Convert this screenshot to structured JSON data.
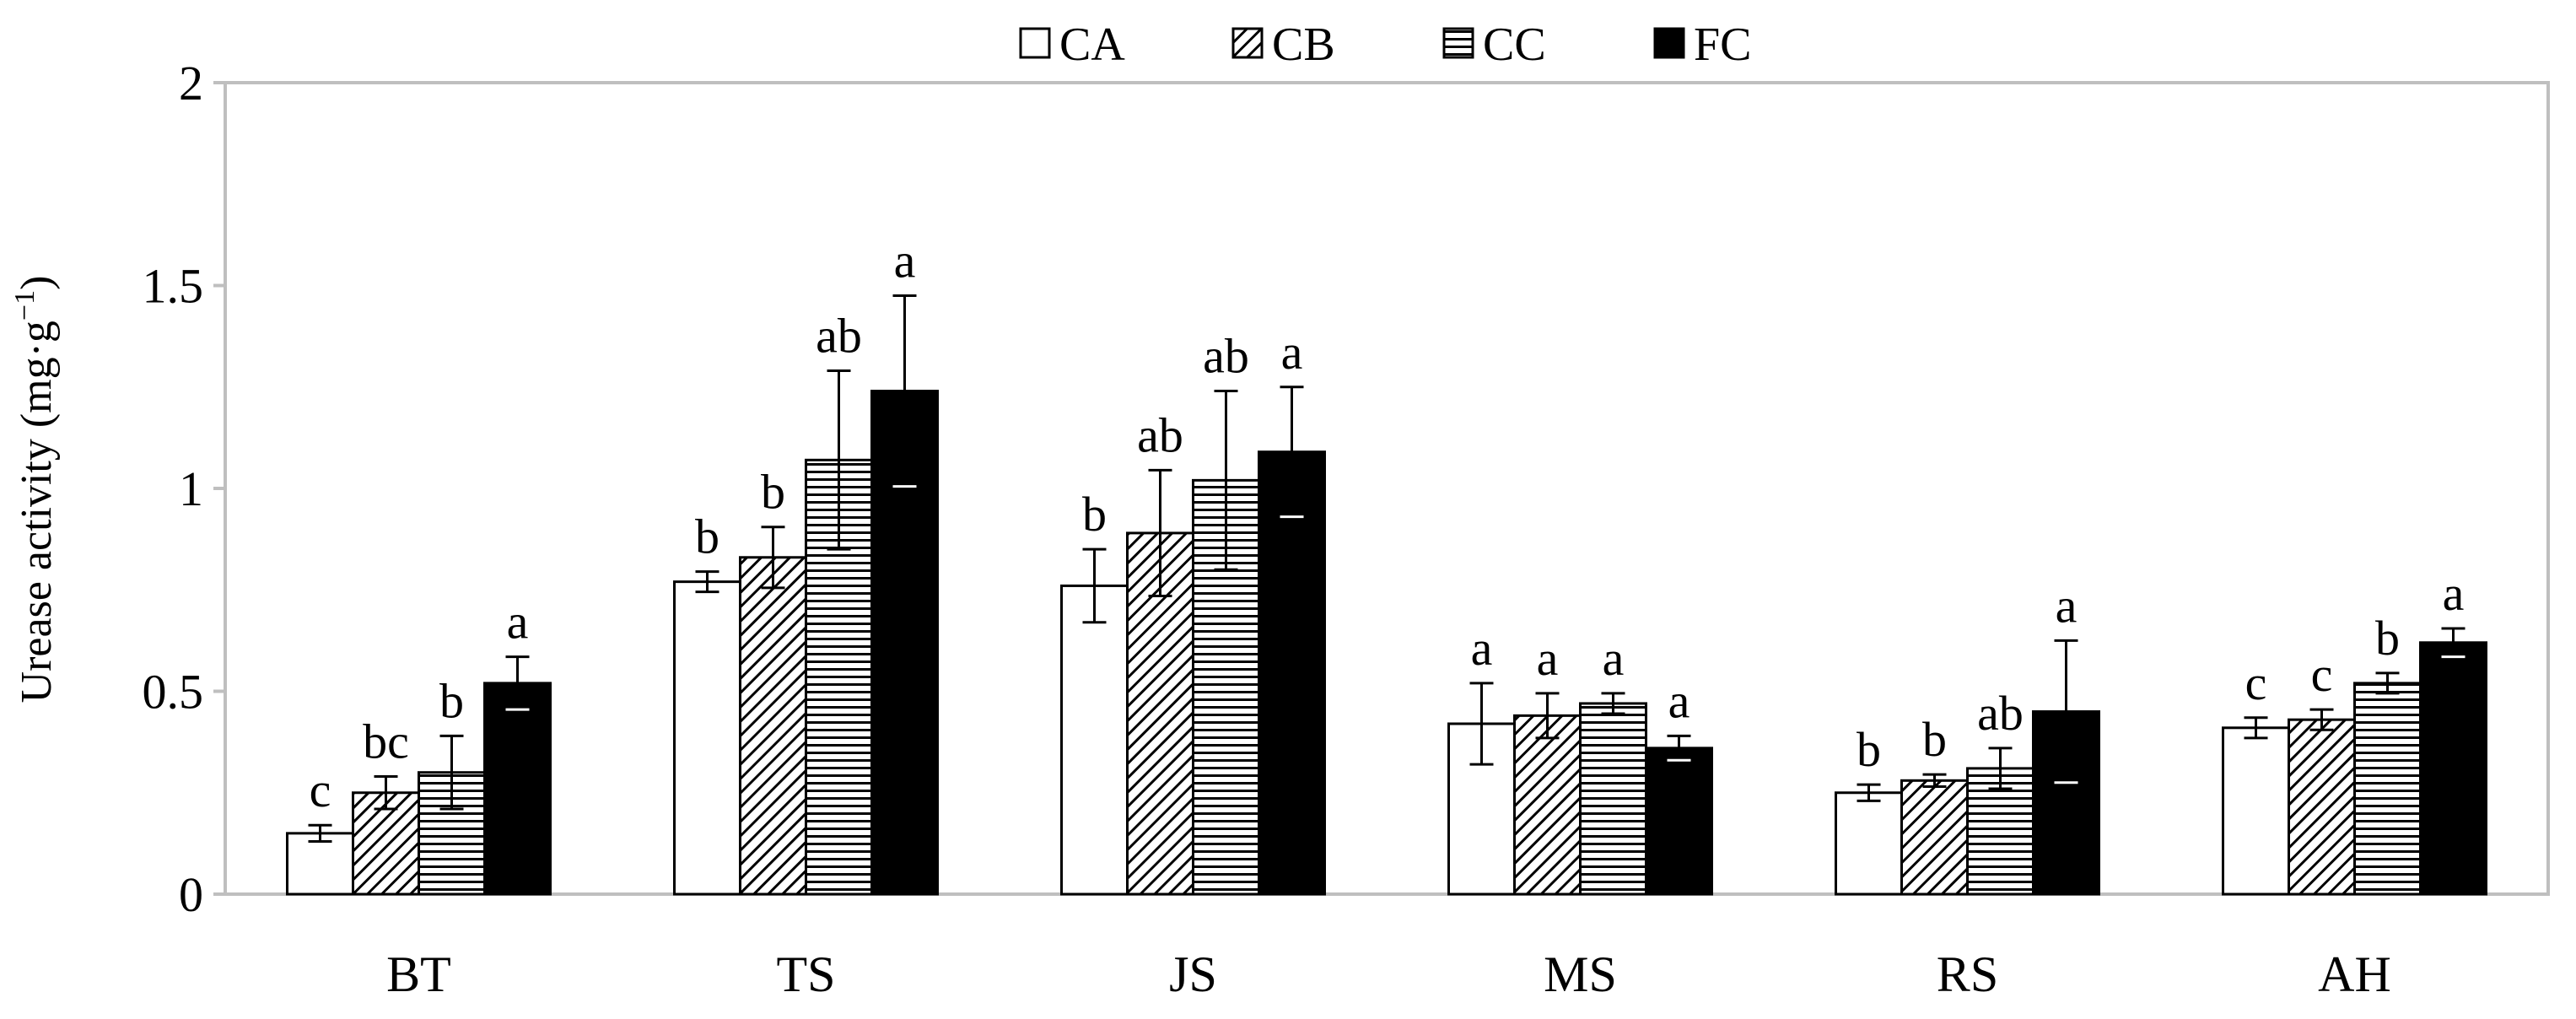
{
  "chart_data": {
    "type": "bar",
    "title": "",
    "ylabel": "Urease activity (mg·g",
    "ylabel_sup": "−1",
    "ylabel_close": ")",
    "xlabel": "",
    "categories": [
      "BT",
      "TS",
      "JS",
      "MS",
      "RS",
      "AH"
    ],
    "ylim": [
      0,
      2
    ],
    "yticks": [
      0,
      0.5,
      1,
      1.5,
      2
    ],
    "ytick_labels": [
      "0",
      "0.5",
      "1",
      "1.5",
      "2"
    ],
    "legend_position": "top-center",
    "series": [
      {
        "name": "CA",
        "pattern": "empty",
        "values": [
          0.15,
          0.77,
          0.76,
          0.42,
          0.25,
          0.41
        ],
        "errors": [
          0.02,
          0.025,
          0.09,
          0.1,
          0.02,
          0.025
        ],
        "letters": [
          "c",
          "b",
          "b",
          "a",
          "b",
          "c"
        ]
      },
      {
        "name": "CB",
        "pattern": "diagonal",
        "values": [
          0.25,
          0.83,
          0.89,
          0.44,
          0.28,
          0.43
        ],
        "errors": [
          0.04,
          0.075,
          0.155,
          0.055,
          0.015,
          0.025
        ],
        "letters": [
          "bc",
          "b",
          "ab",
          "a",
          "b",
          "c"
        ]
      },
      {
        "name": "CC",
        "pattern": "horizontal",
        "values": [
          0.3,
          1.07,
          1.02,
          0.47,
          0.31,
          0.52
        ],
        "errors": [
          0.09,
          0.22,
          0.22,
          0.025,
          0.05,
          0.025
        ],
        "letters": [
          "b",
          "ab",
          "ab",
          "a",
          "ab",
          "b"
        ]
      },
      {
        "name": "FC",
        "pattern": "solid",
        "values": [
          0.52,
          1.24,
          1.09,
          0.36,
          0.45,
          0.62
        ],
        "errors": [
          0.065,
          0.235,
          0.16,
          0.03,
          0.175,
          0.035
        ],
        "letters": [
          "a",
          "a",
          "a",
          "a",
          "a",
          "a"
        ]
      }
    ],
    "colors": {
      "bar_stroke": "#000000",
      "solid_fill": "#000000",
      "empty_fill": "#ffffff",
      "frame": "#bfbfbf"
    }
  }
}
